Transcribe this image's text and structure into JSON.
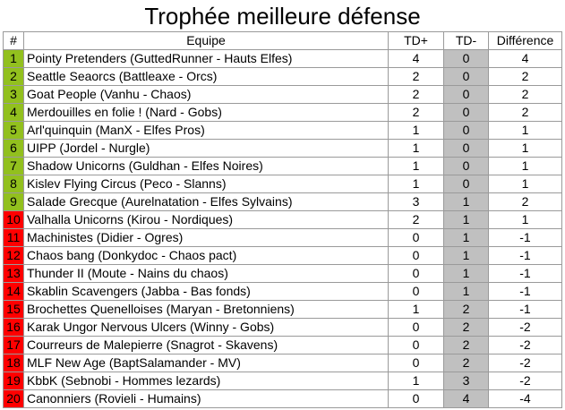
{
  "title": "Trophée meilleure défense",
  "headers": {
    "rank": "#",
    "team": "Equipe",
    "td_plus": "TD+",
    "td_minus": "TD-",
    "diff": "Différence"
  },
  "colors": {
    "green": "#92c01e",
    "red": "#ff0000",
    "grey": "#c0c0c0",
    "border": "#9a9a9a"
  },
  "rows": [
    {
      "rank": "1",
      "team": "Pointy Pretenders (GuttedRunner - Hauts Elfes)",
      "td_plus": "4",
      "td_minus": "0",
      "diff": "4",
      "zone": "green"
    },
    {
      "rank": "2",
      "team": "Seattle Seaorcs (Battleaxe - Orcs)",
      "td_plus": "2",
      "td_minus": "0",
      "diff": "2",
      "zone": "green"
    },
    {
      "rank": "3",
      "team": "Goat People (Vanhu - Chaos)",
      "td_plus": "2",
      "td_minus": "0",
      "diff": "2",
      "zone": "green"
    },
    {
      "rank": "4",
      "team": "Merdouilles en folie ! (Nard - Gobs)",
      "td_plus": "2",
      "td_minus": "0",
      "diff": "2",
      "zone": "green"
    },
    {
      "rank": "5",
      "team": "Arl'quinquin (ManX - Elfes Pros)",
      "td_plus": "1",
      "td_minus": "0",
      "diff": "1",
      "zone": "green"
    },
    {
      "rank": "6",
      "team": "UIPP (Jordel - Nurgle)",
      "td_plus": "1",
      "td_minus": "0",
      "diff": "1",
      "zone": "green"
    },
    {
      "rank": "7",
      "team": "Shadow Unicorns (Guldhan - Elfes Noires)",
      "td_plus": "1",
      "td_minus": "0",
      "diff": "1",
      "zone": "green"
    },
    {
      "rank": "8",
      "team": "Kislev Flying Circus (Peco - Slanns)",
      "td_plus": "1",
      "td_minus": "0",
      "diff": "1",
      "zone": "green"
    },
    {
      "rank": "9",
      "team": "Salade Grecque (Aurelnatation - Elfes Sylvains)",
      "td_plus": "3",
      "td_minus": "1",
      "diff": "2",
      "zone": "green"
    },
    {
      "rank": "10",
      "team": "Valhalla Unicorns (Kirou - Nordiques)",
      "td_plus": "2",
      "td_minus": "1",
      "diff": "1",
      "zone": "red"
    },
    {
      "rank": "11",
      "team": "Machinistes (Didier - Ogres)",
      "td_plus": "0",
      "td_minus": "1",
      "diff": "-1",
      "zone": "red"
    },
    {
      "rank": "12",
      "team": "Chaos bang (Donkydoc - Chaos pact)",
      "td_plus": "0",
      "td_minus": "1",
      "diff": "-1",
      "zone": "red"
    },
    {
      "rank": "13",
      "team": "Thunder II (Moute - Nains du chaos)",
      "td_plus": "0",
      "td_minus": "1",
      "diff": "-1",
      "zone": "red"
    },
    {
      "rank": "14",
      "team": "Skablin Scavengers (Jabba - Bas fonds)",
      "td_plus": "0",
      "td_minus": "1",
      "diff": "-1",
      "zone": "red"
    },
    {
      "rank": "15",
      "team": "Brochettes Quenelloises (Maryan - Bretonniens)",
      "td_plus": "1",
      "td_minus": "2",
      "diff": "-1",
      "zone": "red"
    },
    {
      "rank": "16",
      "team": "Karak Ungor Nervous Ulcers (Winny - Gobs)",
      "td_plus": "0",
      "td_minus": "2",
      "diff": "-2",
      "zone": "red"
    },
    {
      "rank": "17",
      "team": "Courreurs de Malepierre (Snagrot - Skavens)",
      "td_plus": "0",
      "td_minus": "2",
      "diff": "-2",
      "zone": "red"
    },
    {
      "rank": "18",
      "team": "MLF New Age (BaptSalamander - MV)",
      "td_plus": "0",
      "td_minus": "2",
      "diff": "-2",
      "zone": "red"
    },
    {
      "rank": "19",
      "team": "KbbK (Sebnobi - Hommes lezards)",
      "td_plus": "1",
      "td_minus": "3",
      "diff": "-2",
      "zone": "red"
    },
    {
      "rank": "20",
      "team": "Canonniers (Rovieli - Humains)",
      "td_plus": "0",
      "td_minus": "4",
      "diff": "-4",
      "zone": "red"
    }
  ]
}
